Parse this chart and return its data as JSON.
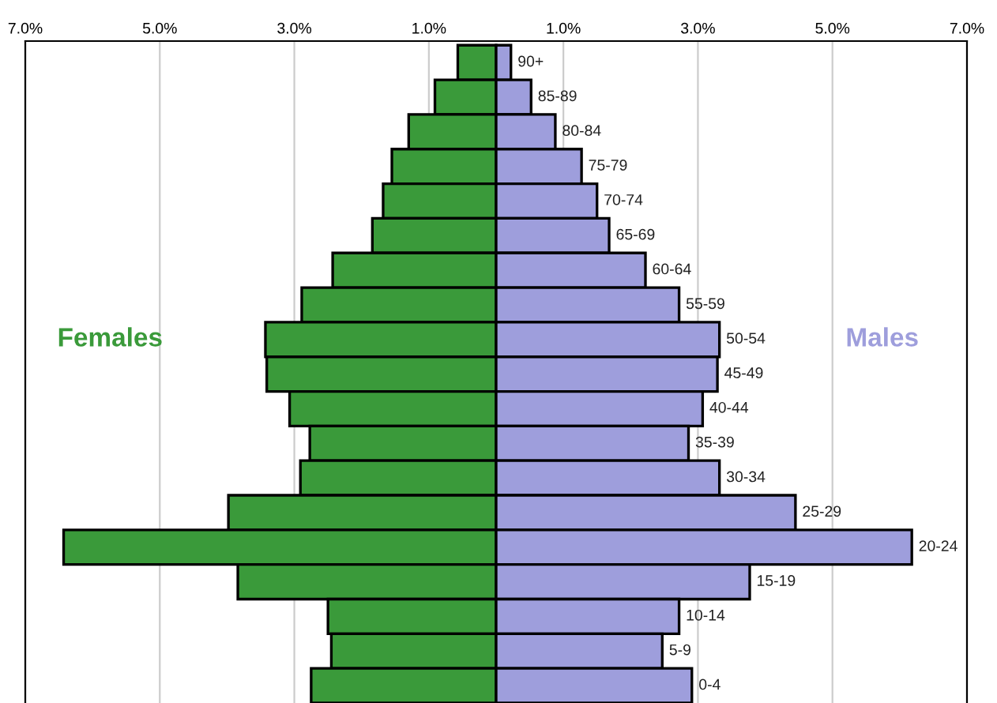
{
  "chart_data": {
    "type": "bar",
    "orientation": "horizontal",
    "categories": [
      "90+",
      "85-89",
      "80-84",
      "75-79",
      "70-74",
      "65-69",
      "60-64",
      "55-59",
      "50-54",
      "45-49",
      "40-44",
      "35-39",
      "30-34",
      "25-29",
      "20-24",
      "15-19",
      "10-14",
      "5-9",
      "0-4"
    ],
    "series": [
      {
        "name": "Females",
        "color": "#3a9a3a",
        "values": [
          -0.57,
          -0.91,
          -1.3,
          -1.55,
          -1.68,
          -1.84,
          -2.43,
          -2.89,
          -3.43,
          -3.41,
          -3.07,
          -2.77,
          -2.91,
          -3.98,
          -6.43,
          -3.84,
          -2.5,
          -2.45,
          -2.75
        ]
      },
      {
        "name": "Males",
        "color": "#9e9edc",
        "values": [
          0.22,
          0.52,
          0.88,
          1.27,
          1.5,
          1.68,
          2.22,
          2.72,
          3.32,
          3.29,
          3.07,
          2.86,
          3.32,
          4.45,
          6.18,
          3.77,
          2.72,
          2.47,
          2.91
        ]
      }
    ],
    "xlim": [
      -7,
      7
    ],
    "xticks": [
      {
        "value": -7,
        "label": "7.0%"
      },
      {
        "value": -5,
        "label": "5.0%"
      },
      {
        "value": -3,
        "label": "3.0%"
      },
      {
        "value": -1,
        "label": "1.0%"
      },
      {
        "value": 1,
        "label": "1.0%"
      },
      {
        "value": 3,
        "label": "3.0%"
      },
      {
        "value": 5,
        "label": "5.0%"
      },
      {
        "value": 7,
        "label": "7.0%"
      }
    ],
    "grid": "x",
    "tick_labels": "x",
    "stacked": true
  }
}
